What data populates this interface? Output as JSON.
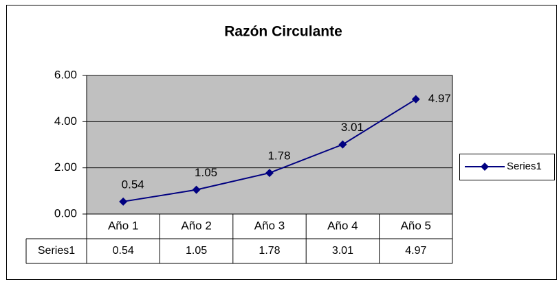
{
  "chart_data": {
    "type": "line",
    "title": "Razón Circulante",
    "categories": [
      "Año 1",
      "Año 2",
      "Año 3",
      "Año 4",
      "Año 5"
    ],
    "series": [
      {
        "name": "Series1",
        "color": "#000080",
        "values": [
          0.54,
          1.05,
          1.78,
          3.01,
          4.97
        ]
      }
    ],
    "ylim": [
      0,
      6
    ],
    "yticks": [
      {
        "value": 0,
        "label": "0.00"
      },
      {
        "value": 2,
        "label": "2.00"
      },
      {
        "value": 4,
        "label": "4.00"
      },
      {
        "value": 6,
        "label": "6.00"
      }
    ],
    "grid": true,
    "plot_background": "#c0c0c0",
    "legend": "right",
    "data_table": true,
    "data_labels": true
  }
}
